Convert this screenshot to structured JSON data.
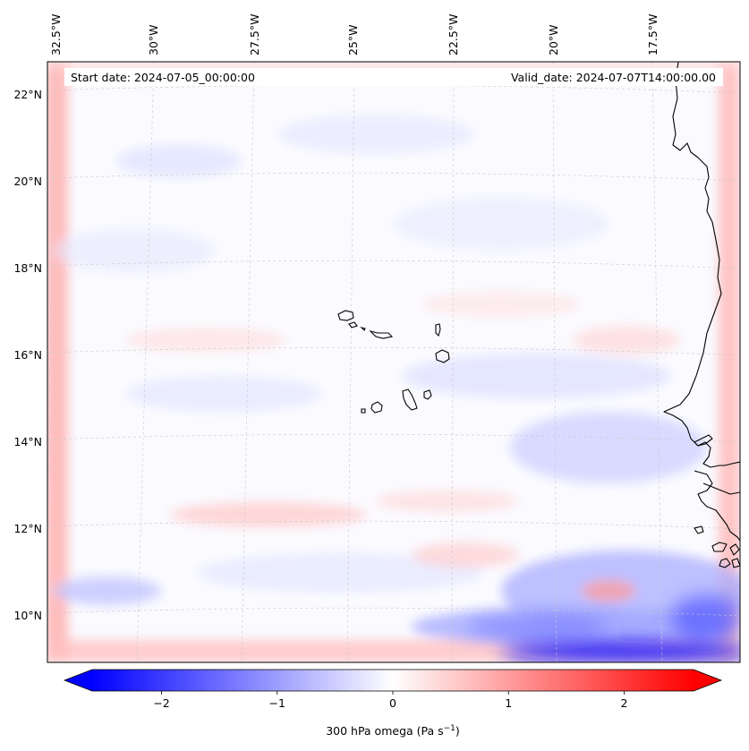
{
  "annotations": {
    "start_date": "Start date: 2024-07-05_00:00:00",
    "valid_date": "Valid_date: 2024-07-07T14:00:00.00"
  },
  "lon_labels": [
    "32.5°W",
    "30°W",
    "27.5°W",
    "25°W",
    "22.5°W",
    "20°W",
    "17.5°W"
  ],
  "lat_labels": [
    "22°N",
    "20°N",
    "18°N",
    "16°N",
    "14°N",
    "12°N",
    "10°N"
  ],
  "colorbar": {
    "ticks": [
      "−2",
      "−1",
      "0",
      "1",
      "2"
    ],
    "label_prefix": "300 hPa omega (Pa s",
    "label_exp": "−1",
    "label_suffix": ")",
    "vmin": -2.6,
    "vmax": 2.6,
    "colormap": "bwr",
    "extend": "both"
  },
  "colors": {
    "negative": "#0000ff",
    "neutral": "#ffffff",
    "positive": "#ff0000",
    "coastline": "#000000",
    "gridline": "#c8c8c8"
  }
}
